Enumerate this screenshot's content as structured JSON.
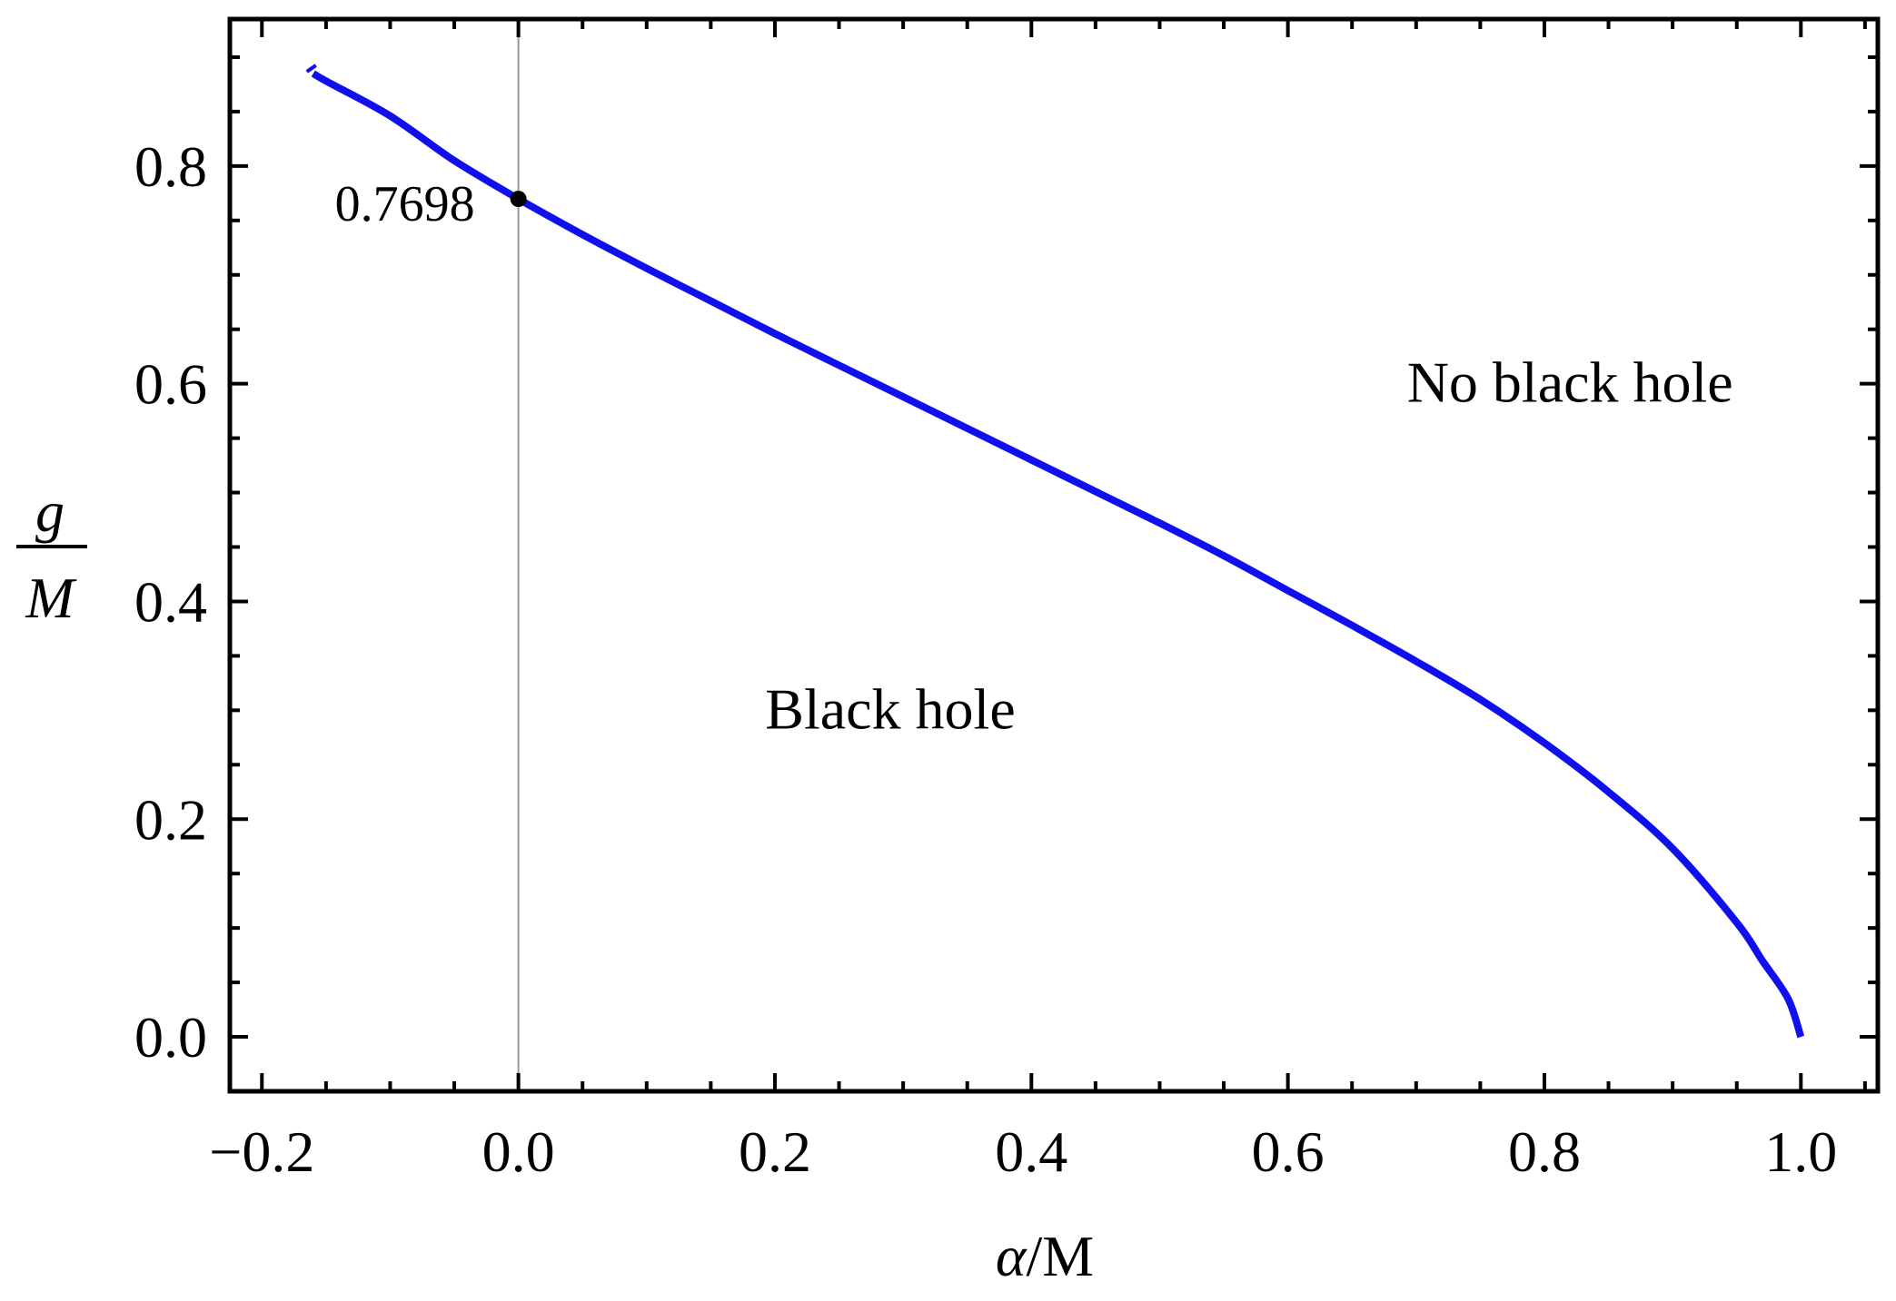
{
  "chart_data": {
    "type": "line",
    "xlabel": "α/M",
    "ylabel_numerator": "g",
    "ylabel_denominator": "M",
    "xlim": [
      -0.225,
      1.06
    ],
    "ylim": [
      -0.05,
      0.935
    ],
    "x_ticks": [
      -0.2,
      0.0,
      0.2,
      0.4,
      0.6,
      0.8,
      1.0
    ],
    "x_tick_labels": [
      "−0.2",
      "0.0",
      "0.2",
      "0.4",
      "0.6",
      "0.8",
      "1.0"
    ],
    "y_ticks": [
      0.0,
      0.2,
      0.4,
      0.6,
      0.8
    ],
    "y_tick_labels": [
      "0.0",
      "0.2",
      "0.4",
      "0.6",
      "0.8"
    ],
    "grid": false,
    "reference_line_x": 0.0,
    "series": [
      {
        "color": "#1010ee",
        "x": [
          -0.16,
          -0.15,
          -0.1,
          -0.05,
          0.0,
          0.05,
          0.1,
          0.15,
          0.2,
          0.25,
          0.3,
          0.35,
          0.4,
          0.45,
          0.5,
          0.55,
          0.6,
          0.65,
          0.7,
          0.75,
          0.8,
          0.85,
          0.9,
          0.95,
          0.97,
          0.99,
          1.0
        ],
        "values": [
          0.885,
          0.878,
          0.846,
          0.805,
          0.7698,
          0.737,
          0.706,
          0.676,
          0.646,
          0.617,
          0.588,
          0.559,
          0.53,
          0.501,
          0.472,
          0.442,
          0.41,
          0.378,
          0.345,
          0.31,
          0.27,
          0.225,
          0.173,
          0.105,
          0.07,
          0.035,
          0.0
        ]
      }
    ],
    "highlight_point": {
      "x": 0.0,
      "y": 0.7698,
      "label": "0.7698"
    },
    "annotations": [
      {
        "text": "No black hole",
        "x": 0.82,
        "y": 0.6
      },
      {
        "text": "Black hole",
        "x": 0.29,
        "y": 0.3
      }
    ]
  }
}
